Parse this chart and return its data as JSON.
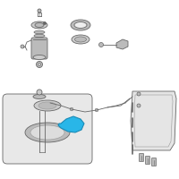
{
  "bg_color": "#ffffff",
  "highlight_color": "#29b6e8",
  "line_color": "#999999",
  "dark_color": "#666666",
  "light_gray": "#bbbbbb",
  "mid_gray": "#cccccc",
  "figsize": [
    2.0,
    2.0
  ],
  "dpi": 100
}
